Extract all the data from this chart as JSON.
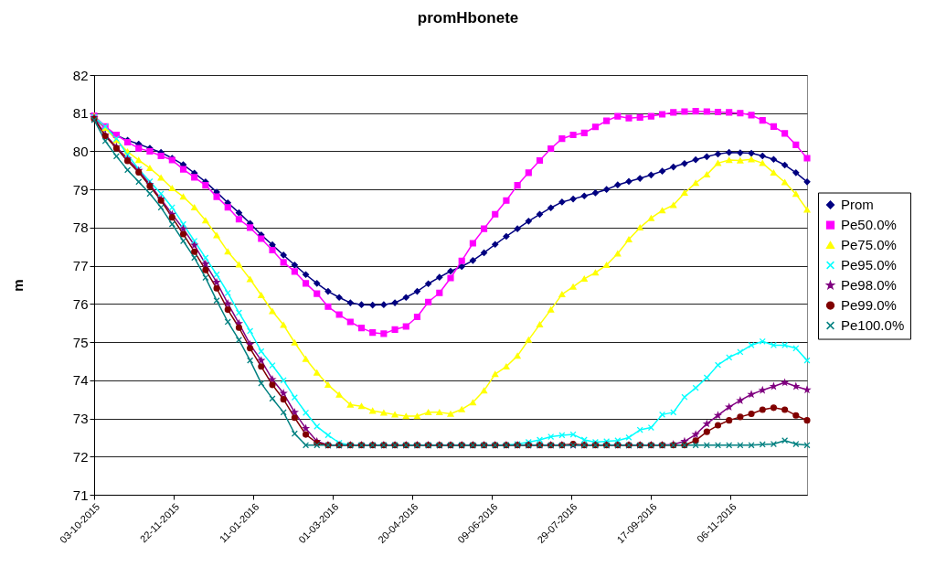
{
  "chart_data": {
    "type": "line",
    "title": "promHbonete",
    "ylabel": "m",
    "x": [
      "2015-10-03",
      "2015-10-10",
      "2015-10-17",
      "2015-10-24",
      "2015-10-31",
      "2015-11-07",
      "2015-11-14",
      "2015-11-21",
      "2015-11-28",
      "2015-12-05",
      "2015-12-12",
      "2015-12-19",
      "2015-12-26",
      "2016-01-02",
      "2016-01-09",
      "2016-01-16",
      "2016-01-23",
      "2016-01-30",
      "2016-02-06",
      "2016-02-13",
      "2016-02-20",
      "2016-02-27",
      "2016-03-05",
      "2016-03-12",
      "2016-03-19",
      "2016-03-26",
      "2016-04-02",
      "2016-04-09",
      "2016-04-16",
      "2016-04-23",
      "2016-04-30",
      "2016-05-07",
      "2016-05-14",
      "2016-05-21",
      "2016-05-28",
      "2016-06-04",
      "2016-06-11",
      "2016-06-18",
      "2016-06-25",
      "2016-07-02",
      "2016-07-09",
      "2016-07-16",
      "2016-07-23",
      "2016-07-30",
      "2016-08-06",
      "2016-08-13",
      "2016-08-20",
      "2016-08-27",
      "2016-09-03",
      "2016-09-10",
      "2016-09-17",
      "2016-09-24",
      "2016-10-01",
      "2016-10-08",
      "2016-10-15",
      "2016-10-22",
      "2016-10-29",
      "2016-11-05",
      "2016-11-12",
      "2016-11-19",
      "2016-11-26",
      "2016-12-03",
      "2016-12-10",
      "2016-12-17",
      "2016-12-24"
    ],
    "series": [
      {
        "name": "Prom",
        "color": "#000080",
        "marker": "diamond",
        "values": [
          80.9,
          80.6,
          80.42,
          80.29,
          80.19,
          80.08,
          79.97,
          79.82,
          79.65,
          79.43,
          79.2,
          78.93,
          78.65,
          78.39,
          78.11,
          77.81,
          77.55,
          77.28,
          77.02,
          76.77,
          76.54,
          76.33,
          76.17,
          76.03,
          75.98,
          75.97,
          75.98,
          76.03,
          76.17,
          76.33,
          76.53,
          76.7,
          76.86,
          76.98,
          77.14,
          77.34,
          77.56,
          77.77,
          77.97,
          78.17,
          78.35,
          78.52,
          78.67,
          78.75,
          78.83,
          78.91,
          79.0,
          79.12,
          79.21,
          79.29,
          79.38,
          79.48,
          79.59,
          79.68,
          79.78,
          79.86,
          79.93,
          79.97,
          79.96,
          79.95,
          79.88,
          79.79,
          79.64,
          79.44,
          79.2
        ]
      },
      {
        "name": "Pe50.0%",
        "color": "#ff00ff",
        "marker": "square",
        "values": [
          80.93,
          80.65,
          80.43,
          80.24,
          80.08,
          80.0,
          79.88,
          79.77,
          79.53,
          79.32,
          79.11,
          78.81,
          78.53,
          78.22,
          78.0,
          77.71,
          77.41,
          77.09,
          76.85,
          76.54,
          76.27,
          75.93,
          75.72,
          75.53,
          75.37,
          75.25,
          75.22,
          75.33,
          75.41,
          75.66,
          76.05,
          76.29,
          76.68,
          77.13,
          77.59,
          77.97,
          78.35,
          78.71,
          79.11,
          79.44,
          79.76,
          80.07,
          80.33,
          80.43,
          80.48,
          80.64,
          80.8,
          80.92,
          80.87,
          80.89,
          80.92,
          80.97,
          81.02,
          81.04,
          81.05,
          81.04,
          81.03,
          81.02,
          81.0,
          80.95,
          80.81,
          80.65,
          80.47,
          80.17,
          79.82
        ]
      },
      {
        "name": "Pe75.0%",
        "color": "#ffff00",
        "marker": "triangle",
        "values": [
          80.93,
          80.61,
          80.29,
          79.99,
          79.77,
          79.56,
          79.31,
          79.03,
          78.81,
          78.53,
          78.19,
          77.8,
          77.37,
          77.03,
          76.65,
          76.23,
          75.81,
          75.45,
          74.99,
          74.56,
          74.2,
          73.88,
          73.62,
          73.36,
          73.32,
          73.2,
          73.15,
          73.1,
          73.06,
          73.06,
          73.16,
          73.16,
          73.12,
          73.24,
          73.42,
          73.73,
          74.16,
          74.36,
          74.64,
          75.06,
          75.46,
          75.85,
          76.25,
          76.45,
          76.66,
          76.82,
          77.02,
          77.32,
          77.69,
          78.0,
          78.25,
          78.45,
          78.59,
          78.91,
          79.17,
          79.39,
          79.69,
          79.77,
          79.76,
          79.79,
          79.69,
          79.44,
          79.19,
          78.88,
          78.47
        ]
      },
      {
        "name": "Pe95.0%",
        "color": "#00ffff",
        "marker": "cross",
        "values": [
          80.9,
          80.65,
          80.33,
          79.91,
          79.53,
          79.21,
          78.89,
          78.53,
          78.09,
          77.65,
          77.21,
          76.77,
          76.29,
          75.77,
          75.29,
          74.76,
          74.39,
          74.0,
          73.55,
          73.15,
          72.79,
          72.56,
          72.36,
          72.3,
          72.3,
          72.3,
          72.3,
          72.3,
          72.3,
          72.3,
          72.3,
          72.3,
          72.3,
          72.3,
          72.3,
          72.3,
          72.3,
          72.3,
          72.33,
          72.38,
          72.44,
          72.52,
          72.56,
          72.58,
          72.44,
          72.38,
          72.4,
          72.42,
          72.5,
          72.7,
          72.76,
          73.1,
          73.16,
          73.56,
          73.8,
          74.07,
          74.4,
          74.6,
          74.74,
          74.92,
          75.02,
          74.92,
          74.92,
          74.84,
          74.52
        ]
      },
      {
        "name": "Pe98.0%",
        "color": "#800080",
        "marker": "star",
        "values": [
          80.88,
          80.43,
          80.12,
          79.8,
          79.5,
          79.13,
          78.75,
          78.35,
          77.97,
          77.54,
          77.05,
          76.57,
          76.01,
          75.49,
          74.94,
          74.52,
          74.02,
          73.66,
          73.16,
          72.74,
          72.4,
          72.3,
          72.3,
          72.3,
          72.3,
          72.3,
          72.3,
          72.3,
          72.3,
          72.3,
          72.3,
          72.3,
          72.3,
          72.3,
          72.3,
          72.3,
          72.3,
          72.3,
          72.3,
          72.3,
          72.3,
          72.3,
          72.3,
          72.3,
          72.3,
          72.3,
          72.3,
          72.3,
          72.3,
          72.3,
          72.3,
          72.3,
          72.32,
          72.4,
          72.58,
          72.86,
          73.08,
          73.3,
          73.47,
          73.63,
          73.74,
          73.84,
          73.94,
          73.84,
          73.75
        ]
      },
      {
        "name": "Pe99.0%",
        "color": "#800000",
        "marker": "circle",
        "values": [
          80.85,
          80.4,
          80.08,
          79.75,
          79.45,
          79.09,
          78.71,
          78.27,
          77.83,
          77.37,
          76.89,
          76.41,
          75.85,
          75.38,
          74.84,
          74.36,
          73.88,
          73.5,
          73.02,
          72.58,
          72.36,
          72.3,
          72.3,
          72.3,
          72.3,
          72.3,
          72.3,
          72.3,
          72.3,
          72.3,
          72.3,
          72.3,
          72.3,
          72.3,
          72.3,
          72.3,
          72.3,
          72.3,
          72.3,
          72.3,
          72.3,
          72.3,
          72.3,
          72.33,
          72.3,
          72.3,
          72.3,
          72.3,
          72.3,
          72.3,
          72.3,
          72.3,
          72.3,
          72.3,
          72.42,
          72.65,
          72.82,
          72.95,
          73.04,
          73.12,
          73.23,
          73.28,
          73.23,
          73.08,
          72.95
        ]
      },
      {
        "name": "Pe100.0%",
        "color": "#008080",
        "marker": "cross",
        "values": [
          80.82,
          80.27,
          79.87,
          79.51,
          79.2,
          78.89,
          78.53,
          78.09,
          77.65,
          77.21,
          76.69,
          76.09,
          75.53,
          75.06,
          74.52,
          73.92,
          73.52,
          73.16,
          72.6,
          72.3,
          72.3,
          72.3,
          72.3,
          72.3,
          72.3,
          72.3,
          72.3,
          72.3,
          72.3,
          72.3,
          72.3,
          72.3,
          72.3,
          72.3,
          72.3,
          72.3,
          72.3,
          72.3,
          72.3,
          72.3,
          72.3,
          72.3,
          72.3,
          72.3,
          72.3,
          72.3,
          72.3,
          72.3,
          72.3,
          72.3,
          72.3,
          72.3,
          72.3,
          72.3,
          72.3,
          72.3,
          72.3,
          72.3,
          72.3,
          72.3,
          72.32,
          72.33,
          72.42,
          72.33,
          72.3
        ]
      }
    ],
    "xlim": [
      "2015-10-03",
      "2016-12-24"
    ],
    "xticks": [
      {
        "value": "2015-10-03",
        "label": "03-10-2015"
      },
      {
        "value": "2015-11-22",
        "label": "22-11-2015"
      },
      {
        "value": "2016-01-11",
        "label": "11-01-2016"
      },
      {
        "value": "2016-03-01",
        "label": "01-03-2016"
      },
      {
        "value": "2016-04-20",
        "label": "20-04-2016"
      },
      {
        "value": "2016-06-09",
        "label": "09-06-2016"
      },
      {
        "value": "2016-07-29",
        "label": "29-07-2016"
      },
      {
        "value": "2016-09-17",
        "label": "17-09-2016"
      },
      {
        "value": "2016-11-06",
        "label": "06-11-2016"
      }
    ],
    "ylim": [
      71,
      82
    ],
    "yticks": [
      71,
      72,
      73,
      74,
      75,
      76,
      77,
      78,
      79,
      80,
      81,
      82
    ],
    "grid": "y",
    "legend": "right",
    "line_style": "solid"
  }
}
